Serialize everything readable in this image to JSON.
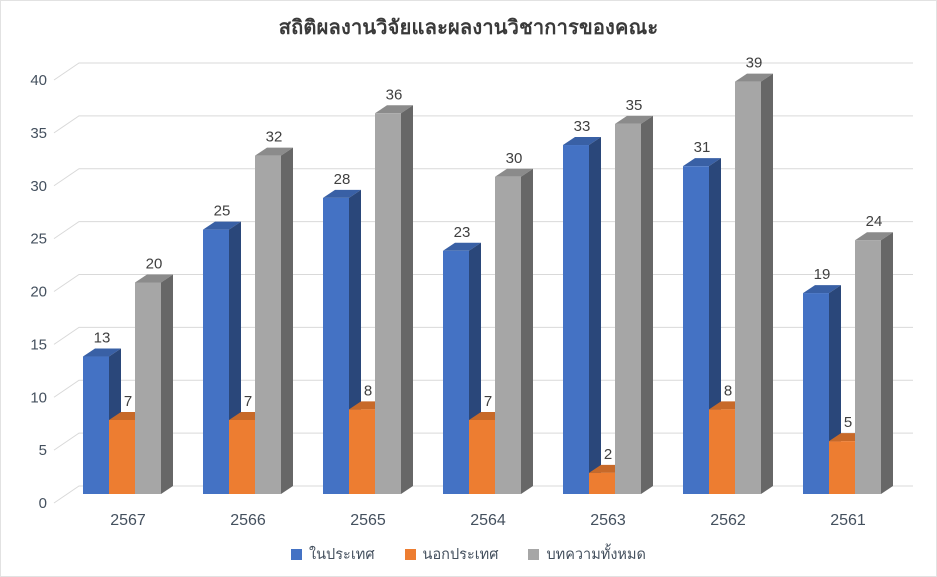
{
  "title": "สถิติผลงานวิจัยและผลงานวิชาการของคณะ",
  "chart_data": {
    "type": "bar",
    "variant": "3d-clustered-column",
    "title": "สถิติผลงานวิจัยและผลงานวิชาการของคณะ",
    "categories": [
      "2567",
      "2566",
      "2565",
      "2564",
      "2563",
      "2562",
      "2561"
    ],
    "series": [
      {
        "name": "ในประเทศ",
        "color": "#4472C4",
        "values": [
          13,
          25,
          28,
          23,
          33,
          31,
          19
        ]
      },
      {
        "name": "นอกประเทศ",
        "color": "#ED7D31",
        "values": [
          7,
          7,
          8,
          7,
          2,
          8,
          5
        ]
      },
      {
        "name": "บทความทั้งหมด",
        "color": "#A6A6A6",
        "values": [
          20,
          32,
          36,
          30,
          35,
          39,
          24
        ]
      }
    ],
    "ylim": [
      0,
      40
    ],
    "yticks": [
      0,
      5,
      10,
      15,
      20,
      25,
      30,
      35,
      40
    ],
    "grid": true,
    "data_labels": true,
    "legend_position": "bottom"
  },
  "colors": {
    "gridline": "#D9D9D9",
    "axis_text": "#44505E",
    "value_text": "#404040",
    "title_text": "#3A3A3A",
    "border": "#E2E2E2",
    "background": "#FFFFFF"
  }
}
